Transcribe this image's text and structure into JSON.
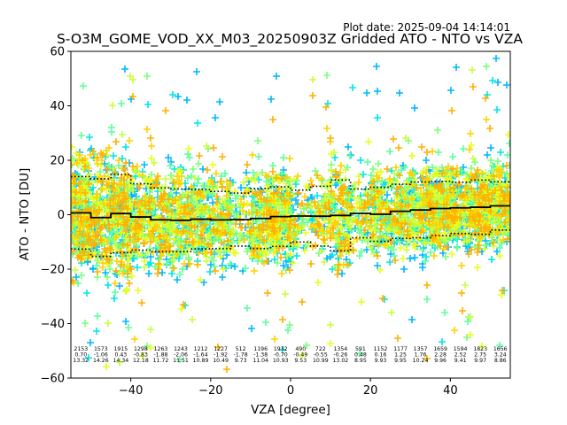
{
  "chart_data": {
    "type": "scatter",
    "title": "S-O3M_GOME_VOD_XX_M03_20250903Z Gridded ATO - NTO vs VZA",
    "plot_date": "Plot date: 2025-09-04 14:14:01",
    "xlabel": "VZA [degree]",
    "ylabel": "ATO - NTO [DU]",
    "xlim": [
      -55,
      55
    ],
    "ylim": [
      -60,
      60
    ],
    "x_ticks": [
      -40,
      -20,
      0,
      20,
      40
    ],
    "y_ticks": [
      -60,
      -40,
      -20,
      0,
      20,
      40,
      60
    ],
    "grid": false,
    "colors": {
      "scatter": [
        "#00b7ff",
        "#00e5e5",
        "#5cff9a",
        "#7aff7a",
        "#c8ff3c",
        "#e8ff1a",
        "#ffd000",
        "#ffb000"
      ],
      "mean_line": "#000000",
      "std_line": "#000000"
    },
    "bins": [
      {
        "x": -52.5,
        "n": "2153",
        "mean": "0.70",
        "std": "13.32"
      },
      {
        "x": -47.5,
        "n": "1573",
        "mean": "-1.06",
        "std": "14.26"
      },
      {
        "x": -42.5,
        "n": "1915",
        "mean": "0.43",
        "std": "14.34"
      },
      {
        "x": -37.5,
        "n": "1298",
        "mean": "-0.83",
        "std": "12.18"
      },
      {
        "x": -32.5,
        "n": "1263",
        "mean": "-1.88",
        "std": "11.72"
      },
      {
        "x": -27.5,
        "n": "1243",
        "mean": "-2.06",
        "std": "11.51"
      },
      {
        "x": -22.5,
        "n": "1212",
        "mean": "-1.64",
        "std": "10.89"
      },
      {
        "x": -17.5,
        "n": "1227",
        "mean": "-1.92",
        "std": "10.49"
      },
      {
        "x": -12.5,
        "n": "512",
        "mean": "-1.78",
        "std": "9.73"
      },
      {
        "x": -7.5,
        "n": "1196",
        "mean": "-1.38",
        "std": "11.04"
      },
      {
        "x": -2.5,
        "n": "1932",
        "mean": "-0.70",
        "std": "10.93"
      },
      {
        "x": 2.5,
        "n": "490",
        "mean": "-0.49",
        "std": "9.53"
      },
      {
        "x": 7.5,
        "n": "722",
        "mean": "-0.55",
        "std": "10.99"
      },
      {
        "x": 12.5,
        "n": "1354",
        "mean": "-0.26",
        "std": "13.02"
      },
      {
        "x": 17.5,
        "n": "591",
        "mean": "0.48",
        "std": "8.95"
      },
      {
        "x": 22.5,
        "n": "1152",
        "mean": "0.16",
        "std": "9.93"
      },
      {
        "x": 27.5,
        "n": "1177",
        "mean": "1.25",
        "std": "9.95"
      },
      {
        "x": 32.5,
        "n": "1357",
        "mean": "1.76",
        "std": "10.24"
      },
      {
        "x": 37.5,
        "n": "1659",
        "mean": "2.28",
        "std": "9.96"
      },
      {
        "x": 42.5,
        "n": "1594",
        "mean": "2.52",
        "std": "9.41"
      },
      {
        "x": 47.5,
        "n": "1823",
        "mean": "2.75",
        "std": "9.97"
      },
      {
        "x": 52.5,
        "n": "1656",
        "mean": "3.24",
        "std": "8.86"
      }
    ]
  }
}
